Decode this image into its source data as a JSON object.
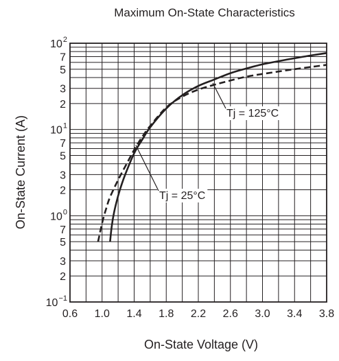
{
  "chart_data": {
    "type": "line",
    "title": "Maximum On-State Characteristics",
    "xlabel": "On-State Voltage  (V)",
    "ylabel": "On-State Current  (A)",
    "xlim": [
      0.6,
      3.8
    ],
    "ylim": [
      0.1,
      100
    ],
    "y_scale": "log",
    "grid": true,
    "x_ticks": [
      0.6,
      1.0,
      1.4,
      1.8,
      2.2,
      2.6,
      3.0,
      3.4,
      3.8
    ],
    "x_tick_labels": [
      "0.6",
      "1.0",
      "1.4",
      "1.8",
      "2.2",
      "2.6",
      "3.0",
      "3.4",
      "3.8"
    ],
    "y_decade_labels": [
      {
        "value": 100,
        "base": "10",
        "exp": "2"
      },
      {
        "value": 10,
        "base": "10",
        "exp": "1"
      },
      {
        "value": 1,
        "base": "10",
        "exp": "0"
      },
      {
        "value": 0.1,
        "base": "10",
        "exp": "−1"
      }
    ],
    "y_minor_labels": [
      {
        "value": 70,
        "label": "7"
      },
      {
        "value": 50,
        "label": "5"
      },
      {
        "value": 30,
        "label": "3"
      },
      {
        "value": 20,
        "label": "2"
      },
      {
        "value": 7,
        "label": "7"
      },
      {
        "value": 5,
        "label": "5"
      },
      {
        "value": 3,
        "label": "3"
      },
      {
        "value": 2,
        "label": "2"
      },
      {
        "value": 0.7,
        "label": "7"
      },
      {
        "value": 0.5,
        "label": "5"
      },
      {
        "value": 0.3,
        "label": "3"
      },
      {
        "value": 0.2,
        "label": "2"
      }
    ],
    "series": [
      {
        "name": "Tj = 25°C",
        "style": "solid",
        "x": [
          1.1,
          1.12,
          1.15,
          1.2,
          1.25,
          1.3,
          1.4,
          1.5,
          1.6,
          1.8,
          2.0,
          2.2,
          2.4,
          2.6,
          2.8,
          3.0,
          3.2,
          3.4,
          3.6,
          3.8
        ],
        "y": [
          0.5,
          0.75,
          1.1,
          1.7,
          2.4,
          3.2,
          5.3,
          7.6,
          10.6,
          17.5,
          25,
          32,
          38,
          45,
          51,
          57,
          62,
          67,
          72,
          77
        ]
      },
      {
        "name": "Tj = 125°C",
        "style": "dashed",
        "x": [
          0.95,
          1.0,
          1.05,
          1.1,
          1.2,
          1.3,
          1.4,
          1.5,
          1.6,
          1.8,
          2.0,
          2.2,
          2.4,
          2.6,
          2.8,
          3.0,
          3.2,
          3.4,
          3.6,
          3.8
        ],
        "y": [
          0.5,
          0.82,
          1.2,
          1.65,
          2.6,
          3.9,
          5.8,
          8.2,
          11,
          18,
          24,
          29,
          33,
          37,
          41,
          44,
          47,
          50,
          53,
          56
        ]
      }
    ],
    "annotations": [
      {
        "text": "Tj = 125°C",
        "series": "Tj = 125°C"
      },
      {
        "text": "Tj = 25°C",
        "series": "Tj = 25°C"
      }
    ]
  }
}
